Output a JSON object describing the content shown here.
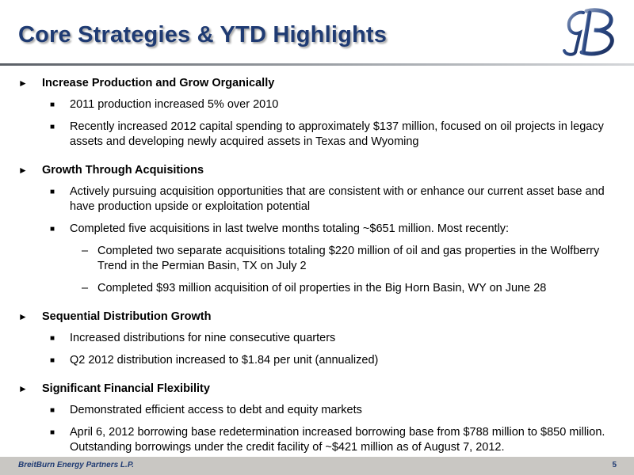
{
  "header": {
    "title": "Core Strategies & YTD Highlights",
    "logo": "breitburn-logo"
  },
  "sections": [
    {
      "heading": "Increase Production and Grow Organically",
      "items": [
        {
          "text": "2011 production increased 5% over 2010"
        },
        {
          "text": "Recently increased 2012 capital spending to approximately $137 million, focused on oil projects in legacy assets and developing newly acquired assets in Texas and Wyoming"
        }
      ]
    },
    {
      "heading": "Growth Through Acquisitions",
      "items": [
        {
          "text": "Actively pursuing acquisition opportunities that are consistent with or enhance our current asset base and have production upside or exploitation potential"
        },
        {
          "text": "Completed five acquisitions in last twelve months totaling ~$651 million. Most recently:",
          "subitems": [
            "Completed two separate acquisitions totaling $220 million of oil and gas properties in the Wolfberry Trend in the Permian Basin, TX on July 2",
            "Completed $93 million acquisition of oil properties in the Big Horn Basin, WY on June 28"
          ]
        }
      ]
    },
    {
      "heading": "Sequential Distribution Growth",
      "items": [
        {
          "text": "Increased distributions for nine consecutive quarters"
        },
        {
          "text": "Q2 2012 distribution increased to $1.84 per unit (annualized)"
        }
      ]
    },
    {
      "heading": "Significant Financial Flexibility",
      "items": [
        {
          "text": "Demonstrated efficient access to debt and equity markets"
        },
        {
          "text": "April 6, 2012 borrowing base redetermination increased borrowing base from $788 million to $850 million. Outstanding borrowings under the credit facility of ~$421 million as of August 7, 2012."
        }
      ]
    }
  ],
  "markers": {
    "level1": "►",
    "level2": "■",
    "level3": "–"
  },
  "footer": {
    "company": "BreitBurn Energy Partners L.P.",
    "page_number": "5"
  },
  "colors": {
    "title": "#1f3b73",
    "footer_bar": "#c9c7c3"
  }
}
